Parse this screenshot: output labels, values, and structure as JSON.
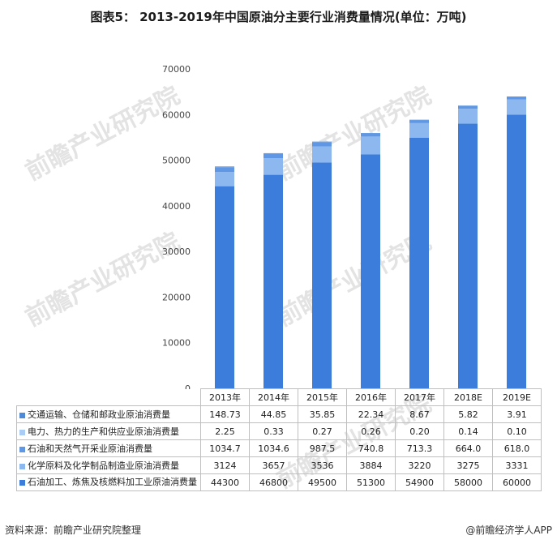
{
  "title": "图表5： 2013-2019年中国原油分主要行业消费量情况(单位：万吨)",
  "footer": {
    "source": "资料来源：前瞻产业研究院整理",
    "brand": "@前瞻经济学人APP"
  },
  "watermark": "前瞻产业研究院",
  "chart_data": {
    "type": "bar",
    "stacked": true,
    "categories": [
      "2013年",
      "2014年",
      "2015年",
      "2016年",
      "2017年",
      "2018E",
      "2019E"
    ],
    "yticks": [
      "0",
      "10000",
      "20000",
      "30000",
      "40000",
      "50000",
      "60000",
      "70000"
    ],
    "ylim": [
      0,
      70000
    ],
    "series": [
      {
        "name": "石油加工、炼焦及核燃料加工业原油消费量",
        "color": "#3c7ddb",
        "values": [
          44300,
          46800,
          49500,
          51300,
          54900,
          58000,
          60000
        ],
        "labels": [
          "44300",
          "46800",
          "49500",
          "51300",
          "54900",
          "58000",
          "60000"
        ]
      },
      {
        "name": "化学原料及化学制品制造业原油消费量",
        "color": "#8cb8ef",
        "values": [
          3124,
          3657,
          3536,
          3884,
          3220,
          3275,
          3331
        ],
        "labels": [
          "3124",
          "3657",
          "3536",
          "3884",
          "3220",
          "3275",
          "3331"
        ]
      },
      {
        "name": "石油和天然气开采业原油消费量",
        "color": "#5f97e4",
        "values": [
          1034.7,
          1034.6,
          987.5,
          740.8,
          713.3,
          664.0,
          618.0
        ],
        "labels": [
          "1034.7",
          "1034.6",
          "987.5",
          "740.8",
          "713.3",
          "664.0",
          "618.0"
        ]
      },
      {
        "name": "电力、热力的生产和供应业原油消费量",
        "color": "#a9cdf5",
        "values": [
          2.25,
          0.33,
          0.27,
          0.26,
          0.2,
          0.14,
          0.1
        ],
        "labels": [
          "2.25",
          "0.33",
          "0.27",
          "0.26",
          "0.20",
          "0.14",
          "0.10"
        ]
      },
      {
        "name": "交通运输、仓储和邮政业原油消费量",
        "color": "#4f8ad6",
        "values": [
          148.73,
          44.85,
          35.85,
          22.34,
          8.67,
          5.82,
          3.91
        ],
        "labels": [
          "148.73",
          "44.85",
          "35.85",
          "22.34",
          "8.67",
          "5.82",
          "3.91"
        ]
      }
    ],
    "table_row_order": [
      4,
      3,
      2,
      1,
      0
    ],
    "grid": false,
    "legend": "table-left"
  }
}
